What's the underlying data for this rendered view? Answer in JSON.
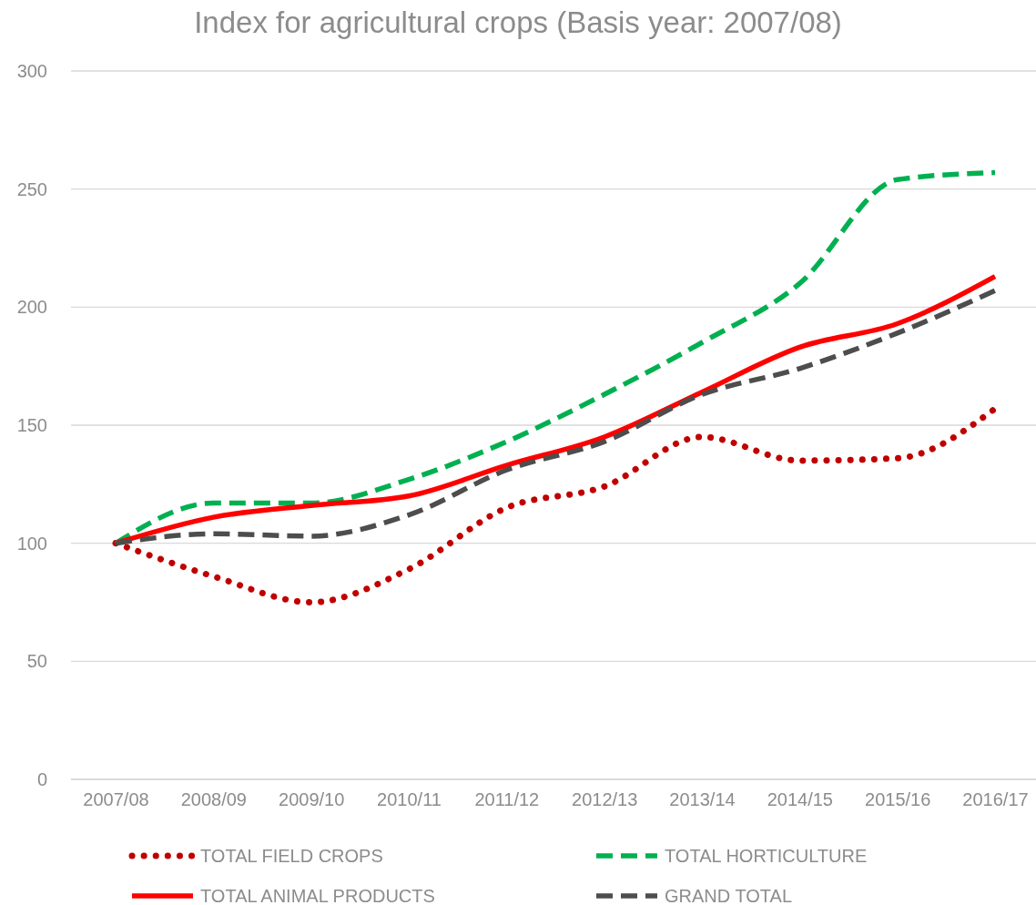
{
  "chart_data": {
    "type": "line",
    "title": "Index for agricultural crops (Basis year: 2007/08)",
    "categories": [
      "2007/08",
      "2008/09",
      "2009/10",
      "2010/11",
      "2011/12",
      "2012/13",
      "2013/14",
      "2014/15",
      "2015/16",
      "2016/17"
    ],
    "series": [
      {
        "name": "TOTAL FIELD CROPS",
        "color": "#c00000",
        "line_style": "dotted",
        "values": [
          100,
          86,
          75,
          89,
          115,
          124,
          145,
          135,
          136,
          157
        ]
      },
      {
        "name": "TOTAL HORTICULTURE",
        "color": "#00b050",
        "line_style": "dashed",
        "values": [
          100,
          117,
          117,
          127,
          143,
          163,
          185,
          210,
          254,
          257
        ]
      },
      {
        "name": "TOTAL ANIMAL PRODUCTS",
        "color": "#ff0000",
        "line_style": "solid",
        "values": [
          100,
          111,
          116,
          120,
          133,
          145,
          164,
          183,
          193,
          213
        ]
      },
      {
        "name": "GRAND TOTAL",
        "color": "#4d4d4d",
        "line_style": "dashed",
        "values": [
          100,
          104,
          103,
          112,
          131,
          143,
          163,
          174,
          189,
          207
        ]
      }
    ],
    "ylim": [
      0,
      300
    ],
    "yticks": [
      0,
      50,
      100,
      150,
      200,
      250,
      300
    ],
    "grid": "y",
    "legend": "bottom",
    "marker": "none"
  }
}
